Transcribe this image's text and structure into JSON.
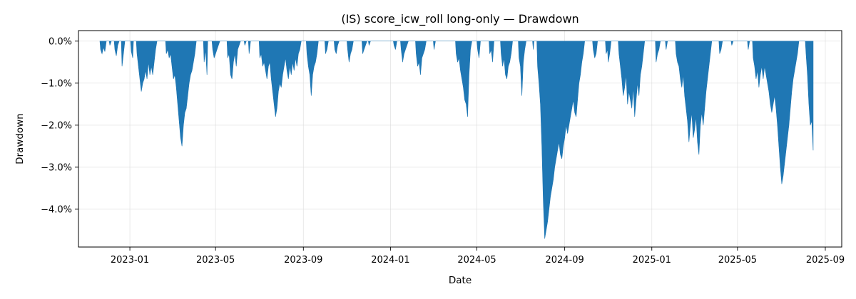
{
  "chart_data": {
    "type": "area",
    "title": "(IS) score_icw_roll long-only — Drawdown",
    "xlabel": "Date",
    "ylabel": "Drawdown",
    "series_color": "#1f77b4",
    "grid": true,
    "x_range": [
      "2022-10-21",
      "2025-09-24"
    ],
    "ylim": [
      -4.9,
      0.25
    ],
    "x_ticks": [
      "2023-01-01",
      "2023-05-01",
      "2023-09-01",
      "2024-01-01",
      "2024-05-01",
      "2024-09-01",
      "2025-01-01",
      "2025-05-01",
      "2025-09-01"
    ],
    "x_tick_labels": [
      "2023-01",
      "2023-05",
      "2023-09",
      "2024-01",
      "2024-05",
      "2024-09",
      "2025-01",
      "2025-05",
      "2025-09"
    ],
    "y_ticks": [
      0,
      -1,
      -2,
      -3,
      -4
    ],
    "y_tick_labels": [
      "0.0%",
      "−1.0%",
      "−2.0%",
      "−3.0%",
      "−4.0%"
    ],
    "y_unit": "percent",
    "points": [
      [
        "2022-11-20",
        0
      ],
      [
        "2022-11-21",
        -0.2
      ],
      [
        "2022-11-23",
        -0.3
      ],
      [
        "2022-11-25",
        -0.15
      ],
      [
        "2022-11-27",
        -0.25
      ],
      [
        "2022-11-29",
        0
      ],
      [
        "2022-12-03",
        0
      ],
      [
        "2022-12-04",
        -0.1
      ],
      [
        "2022-12-06",
        0
      ],
      [
        "2022-12-10",
        0
      ],
      [
        "2022-12-11",
        -0.2
      ],
      [
        "2022-12-13",
        -0.35
      ],
      [
        "2022-12-15",
        -0.1
      ],
      [
        "2022-12-17",
        0
      ],
      [
        "2022-12-20",
        0
      ],
      [
        "2022-12-21",
        -0.6
      ],
      [
        "2022-12-23",
        -0.3
      ],
      [
        "2022-12-25",
        0
      ],
      [
        "2023-01-02",
        0
      ],
      [
        "2023-01-03",
        -0.25
      ],
      [
        "2023-01-05",
        -0.4
      ],
      [
        "2023-01-06",
        0
      ],
      [
        "2023-01-10",
        0
      ],
      [
        "2023-01-11",
        -0.3
      ],
      [
        "2023-01-13",
        -0.6
      ],
      [
        "2023-01-15",
        -0.9
      ],
      [
        "2023-01-17",
        -1.2
      ],
      [
        "2023-01-19",
        -1.0
      ],
      [
        "2023-01-21",
        -0.9
      ],
      [
        "2023-01-23",
        -0.7
      ],
      [
        "2023-01-25",
        -0.9
      ],
      [
        "2023-01-27",
        -0.5
      ],
      [
        "2023-01-29",
        -0.8
      ],
      [
        "2023-01-31",
        -0.6
      ],
      [
        "2023-02-02",
        -0.8
      ],
      [
        "2023-02-04",
        -0.5
      ],
      [
        "2023-02-06",
        -0.2
      ],
      [
        "2023-02-08",
        0
      ],
      [
        "2023-02-20",
        0
      ],
      [
        "2023-02-21",
        -0.3
      ],
      [
        "2023-02-23",
        -0.2
      ],
      [
        "2023-02-25",
        -0.4
      ],
      [
        "2023-02-27",
        -0.3
      ],
      [
        "2023-03-01",
        -0.6
      ],
      [
        "2023-03-03",
        -0.9
      ],
      [
        "2023-03-05",
        -0.8
      ],
      [
        "2023-03-07",
        -1.1
      ],
      [
        "2023-03-09",
        -1.5
      ],
      [
        "2023-03-11",
        -1.9
      ],
      [
        "2023-03-13",
        -2.3
      ],
      [
        "2023-03-15",
        -2.5
      ],
      [
        "2023-03-17",
        -2.0
      ],
      [
        "2023-03-19",
        -1.7
      ],
      [
        "2023-03-21",
        -1.6
      ],
      [
        "2023-03-23",
        -1.3
      ],
      [
        "2023-03-25",
        -1.0
      ],
      [
        "2023-03-27",
        -0.8
      ],
      [
        "2023-03-29",
        -0.7
      ],
      [
        "2023-03-31",
        -0.5
      ],
      [
        "2023-04-02",
        -0.3
      ],
      [
        "2023-04-04",
        0
      ],
      [
        "2023-04-14",
        0
      ],
      [
        "2023-04-15",
        -0.5
      ],
      [
        "2023-04-17",
        -0.2
      ],
      [
        "2023-04-19",
        -0.8
      ],
      [
        "2023-04-20",
        0
      ],
      [
        "2023-04-26",
        0
      ],
      [
        "2023-04-27",
        -0.2
      ],
      [
        "2023-04-29",
        -0.4
      ],
      [
        "2023-05-01",
        -0.3
      ],
      [
        "2023-05-03",
        -0.2
      ],
      [
        "2023-05-05",
        -0.1
      ],
      [
        "2023-05-07",
        0
      ],
      [
        "2023-05-17",
        0
      ],
      [
        "2023-05-18",
        -0.4
      ],
      [
        "2023-05-20",
        -0.3
      ],
      [
        "2023-05-22",
        -0.8
      ],
      [
        "2023-05-24",
        -0.9
      ],
      [
        "2023-05-26",
        -0.5
      ],
      [
        "2023-05-28",
        -0.3
      ],
      [
        "2023-05-30",
        -0.6
      ],
      [
        "2023-06-01",
        -0.2
      ],
      [
        "2023-06-03",
        -0.1
      ],
      [
        "2023-06-05",
        0
      ],
      [
        "2023-06-10",
        0
      ],
      [
        "2023-06-11",
        -0.1
      ],
      [
        "2023-06-13",
        0
      ],
      [
        "2023-06-16",
        0
      ],
      [
        "2023-06-17",
        -0.3
      ],
      [
        "2023-06-19",
        0
      ],
      [
        "2023-07-01",
        0
      ],
      [
        "2023-07-02",
        -0.4
      ],
      [
        "2023-07-04",
        -0.3
      ],
      [
        "2023-07-06",
        -0.6
      ],
      [
        "2023-07-08",
        -0.5
      ],
      [
        "2023-07-10",
        -0.7
      ],
      [
        "2023-07-12",
        -0.9
      ],
      [
        "2023-07-14",
        -0.6
      ],
      [
        "2023-07-16",
        -0.5
      ],
      [
        "2023-07-18",
        -0.9
      ],
      [
        "2023-07-20",
        -1.2
      ],
      [
        "2023-07-22",
        -1.5
      ],
      [
        "2023-07-24",
        -1.8
      ],
      [
        "2023-07-26",
        -1.6
      ],
      [
        "2023-07-28",
        -1.2
      ],
      [
        "2023-07-30",
        -1.0
      ],
      [
        "2023-08-01",
        -1.1
      ],
      [
        "2023-08-03",
        -0.8
      ],
      [
        "2023-08-05",
        -0.6
      ],
      [
        "2023-08-07",
        -0.4
      ],
      [
        "2023-08-09",
        -0.7
      ],
      [
        "2023-08-11",
        -0.9
      ],
      [
        "2023-08-13",
        -0.6
      ],
      [
        "2023-08-15",
        -0.8
      ],
      [
        "2023-08-17",
        -0.5
      ],
      [
        "2023-08-19",
        -0.7
      ],
      [
        "2023-08-21",
        -0.4
      ],
      [
        "2023-08-23",
        -0.6
      ],
      [
        "2023-08-25",
        -0.3
      ],
      [
        "2023-08-27",
        -0.2
      ],
      [
        "2023-08-29",
        0
      ],
      [
        "2023-09-05",
        0
      ],
      [
        "2023-09-06",
        -0.3
      ],
      [
        "2023-09-08",
        -0.6
      ],
      [
        "2023-09-10",
        -0.8
      ],
      [
        "2023-09-12",
        -1.3
      ],
      [
        "2023-09-14",
        -0.8
      ],
      [
        "2023-09-16",
        -0.6
      ],
      [
        "2023-09-18",
        -0.5
      ],
      [
        "2023-09-20",
        -0.3
      ],
      [
        "2023-09-22",
        0
      ],
      [
        "2023-10-01",
        0
      ],
      [
        "2023-10-02",
        -0.3
      ],
      [
        "2023-10-04",
        -0.2
      ],
      [
        "2023-10-06",
        0
      ],
      [
        "2023-10-14",
        0
      ],
      [
        "2023-10-15",
        -0.2
      ],
      [
        "2023-10-17",
        -0.3
      ],
      [
        "2023-10-19",
        -0.1
      ],
      [
        "2023-10-21",
        0
      ],
      [
        "2023-11-01",
        0
      ],
      [
        "2023-11-02",
        -0.2
      ],
      [
        "2023-11-04",
        -0.5
      ],
      [
        "2023-11-06",
        -0.3
      ],
      [
        "2023-11-08",
        -0.2
      ],
      [
        "2023-11-10",
        0
      ],
      [
        "2023-11-22",
        0
      ],
      [
        "2023-11-23",
        -0.3
      ],
      [
        "2023-11-25",
        -0.2
      ],
      [
        "2023-11-27",
        -0.1
      ],
      [
        "2023-11-29",
        0
      ],
      [
        "2023-12-01",
        0
      ],
      [
        "2023-12-02",
        -0.1
      ],
      [
        "2023-12-04",
        0
      ],
      [
        "2024-01-05",
        0
      ],
      [
        "2024-01-06",
        -0.1
      ],
      [
        "2024-01-08",
        -0.2
      ],
      [
        "2024-01-10",
        0
      ],
      [
        "2024-01-15",
        0
      ],
      [
        "2024-01-16",
        -0.2
      ],
      [
        "2024-01-18",
        -0.5
      ],
      [
        "2024-01-20",
        -0.3
      ],
      [
        "2024-01-22",
        -0.2
      ],
      [
        "2024-01-24",
        -0.1
      ],
      [
        "2024-01-26",
        0
      ],
      [
        "2024-02-05",
        0
      ],
      [
        "2024-02-06",
        -0.3
      ],
      [
        "2024-02-08",
        -0.6
      ],
      [
        "2024-02-10",
        -0.5
      ],
      [
        "2024-02-12",
        -0.8
      ],
      [
        "2024-02-14",
        -0.4
      ],
      [
        "2024-02-16",
        -0.3
      ],
      [
        "2024-02-18",
        -0.2
      ],
      [
        "2024-02-20",
        0
      ],
      [
        "2024-03-01",
        0
      ],
      [
        "2024-03-02",
        -0.2
      ],
      [
        "2024-03-04",
        0
      ],
      [
        "2024-04-01",
        0
      ],
      [
        "2024-04-02",
        -0.3
      ],
      [
        "2024-04-04",
        -0.5
      ],
      [
        "2024-04-06",
        -0.4
      ],
      [
        "2024-04-08",
        -0.7
      ],
      [
        "2024-04-10",
        -0.9
      ],
      [
        "2024-04-12",
        -1.1
      ],
      [
        "2024-04-14",
        -1.4
      ],
      [
        "2024-04-16",
        -1.5
      ],
      [
        "2024-04-18",
        -1.8
      ],
      [
        "2024-04-20",
        -0.8
      ],
      [
        "2024-04-22",
        -0.2
      ],
      [
        "2024-04-24",
        0
      ],
      [
        "2024-05-01",
        0
      ],
      [
        "2024-05-02",
        -0.2
      ],
      [
        "2024-05-04",
        -0.4
      ],
      [
        "2024-05-06",
        0
      ],
      [
        "2024-05-18",
        0
      ],
      [
        "2024-05-19",
        -0.3
      ],
      [
        "2024-05-21",
        -0.2
      ],
      [
        "2024-05-23",
        -0.5
      ],
      [
        "2024-05-25",
        0
      ],
      [
        "2024-06-03",
        0
      ],
      [
        "2024-06-04",
        -0.3
      ],
      [
        "2024-06-06",
        -0.6
      ],
      [
        "2024-06-08",
        -0.4
      ],
      [
        "2024-06-10",
        -0.8
      ],
      [
        "2024-06-12",
        -0.9
      ],
      [
        "2024-06-14",
        -0.6
      ],
      [
        "2024-06-16",
        -0.5
      ],
      [
        "2024-06-18",
        -0.3
      ],
      [
        "2024-06-20",
        0
      ],
      [
        "2024-06-28",
        0
      ],
      [
        "2024-06-29",
        -0.4
      ],
      [
        "2024-07-01",
        -0.6
      ],
      [
        "2024-07-03",
        -1.3
      ],
      [
        "2024-07-05",
        -0.5
      ],
      [
        "2024-07-07",
        -0.2
      ],
      [
        "2024-07-09",
        0
      ],
      [
        "2024-07-18",
        0
      ],
      [
        "2024-07-19",
        -0.2
      ],
      [
        "2024-07-20",
        0
      ],
      [
        "2024-07-24",
        0
      ],
      [
        "2024-07-25",
        -0.6
      ],
      [
        "2024-07-27",
        -1.0
      ],
      [
        "2024-07-29",
        -1.5
      ],
      [
        "2024-07-31",
        -2.5
      ],
      [
        "2024-08-02",
        -3.8
      ],
      [
        "2024-08-04",
        -4.7
      ],
      [
        "2024-08-06",
        -4.5
      ],
      [
        "2024-08-08",
        -4.3
      ],
      [
        "2024-08-10",
        -4.0
      ],
      [
        "2024-08-12",
        -3.7
      ],
      [
        "2024-08-14",
        -3.5
      ],
      [
        "2024-08-16",
        -3.3
      ],
      [
        "2024-08-18",
        -3.0
      ],
      [
        "2024-08-20",
        -2.8
      ],
      [
        "2024-08-22",
        -2.6
      ],
      [
        "2024-08-24",
        -2.4
      ],
      [
        "2024-08-26",
        -2.7
      ],
      [
        "2024-08-28",
        -2.8
      ],
      [
        "2024-08-30",
        -2.5
      ],
      [
        "2024-09-01",
        -2.3
      ],
      [
        "2024-09-03",
        -2.0
      ],
      [
        "2024-09-05",
        -2.2
      ],
      [
        "2024-09-07",
        -2.0
      ],
      [
        "2024-09-09",
        -1.8
      ],
      [
        "2024-09-11",
        -1.6
      ],
      [
        "2024-09-13",
        -1.4
      ],
      [
        "2024-09-15",
        -1.7
      ],
      [
        "2024-09-17",
        -1.8
      ],
      [
        "2024-09-19",
        -1.4
      ],
      [
        "2024-09-21",
        -1.0
      ],
      [
        "2024-09-23",
        -0.8
      ],
      [
        "2024-09-25",
        -0.5
      ],
      [
        "2024-09-27",
        -0.3
      ],
      [
        "2024-09-29",
        0
      ],
      [
        "2024-10-10",
        0
      ],
      [
        "2024-10-11",
        -0.2
      ],
      [
        "2024-10-13",
        -0.4
      ],
      [
        "2024-10-15",
        -0.3
      ],
      [
        "2024-10-17",
        0
      ],
      [
        "2024-10-28",
        0
      ],
      [
        "2024-10-29",
        -0.3
      ],
      [
        "2024-10-31",
        -0.2
      ],
      [
        "2024-11-01",
        -0.5
      ],
      [
        "2024-11-03",
        -0.3
      ],
      [
        "2024-11-05",
        0
      ],
      [
        "2024-11-15",
        0
      ],
      [
        "2024-11-16",
        -0.3
      ],
      [
        "2024-11-18",
        -0.6
      ],
      [
        "2024-11-20",
        -0.9
      ],
      [
        "2024-11-22",
        -1.3
      ],
      [
        "2024-11-24",
        -1.1
      ],
      [
        "2024-11-26",
        -0.8
      ],
      [
        "2024-11-28",
        -1.5
      ],
      [
        "2024-11-30",
        -1.2
      ],
      [
        "2024-12-02",
        -1.4
      ],
      [
        "2024-12-04",
        -1.6
      ],
      [
        "2024-12-06",
        -1.1
      ],
      [
        "2024-12-08",
        -1.8
      ],
      [
        "2024-12-10",
        -1.4
      ],
      [
        "2024-12-12",
        -1.0
      ],
      [
        "2024-12-14",
        -1.3
      ],
      [
        "2024-12-16",
        -0.8
      ],
      [
        "2024-12-18",
        -0.6
      ],
      [
        "2024-12-20",
        -0.3
      ],
      [
        "2024-12-22",
        0
      ],
      [
        "2025-01-06",
        0
      ],
      [
        "2025-01-07",
        -0.5
      ],
      [
        "2025-01-09",
        -0.3
      ],
      [
        "2025-01-11",
        -0.2
      ],
      [
        "2025-01-13",
        0
      ],
      [
        "2025-01-20",
        0
      ],
      [
        "2025-01-21",
        -0.2
      ],
      [
        "2025-01-23",
        0
      ],
      [
        "2025-02-03",
        0
      ],
      [
        "2025-02-04",
        -0.3
      ],
      [
        "2025-02-06",
        -0.5
      ],
      [
        "2025-02-08",
        -0.6
      ],
      [
        "2025-02-10",
        -0.9
      ],
      [
        "2025-02-12",
        -1.1
      ],
      [
        "2025-02-14",
        -0.8
      ],
      [
        "2025-02-16",
        -1.3
      ],
      [
        "2025-02-18",
        -1.6
      ],
      [
        "2025-02-20",
        -1.9
      ],
      [
        "2025-02-22",
        -2.4
      ],
      [
        "2025-02-24",
        -2.0
      ],
      [
        "2025-02-26",
        -1.7
      ],
      [
        "2025-02-28",
        -2.3
      ],
      [
        "2025-03-02",
        -2.1
      ],
      [
        "2025-03-04",
        -1.8
      ],
      [
        "2025-03-06",
        -2.4
      ],
      [
        "2025-03-08",
        -2.7
      ],
      [
        "2025-03-10",
        -2.0
      ],
      [
        "2025-03-12",
        -1.7
      ],
      [
        "2025-03-14",
        -2.0
      ],
      [
        "2025-03-16",
        -1.6
      ],
      [
        "2025-03-18",
        -1.2
      ],
      [
        "2025-03-20",
        -0.9
      ],
      [
        "2025-03-22",
        -0.6
      ],
      [
        "2025-03-24",
        -0.3
      ],
      [
        "2025-03-26",
        0
      ],
      [
        "2025-04-05",
        0
      ],
      [
        "2025-04-06",
        -0.3
      ],
      [
        "2025-04-08",
        -0.2
      ],
      [
        "2025-04-10",
        0
      ],
      [
        "2025-04-22",
        0
      ],
      [
        "2025-04-23",
        -0.1
      ],
      [
        "2025-04-25",
        0
      ],
      [
        "2025-05-15",
        0
      ],
      [
        "2025-05-16",
        -0.2
      ],
      [
        "2025-05-18",
        0
      ],
      [
        "2025-05-22",
        0
      ],
      [
        "2025-05-23",
        -0.4
      ],
      [
        "2025-05-25",
        -0.6
      ],
      [
        "2025-05-27",
        -0.9
      ],
      [
        "2025-05-29",
        -0.7
      ],
      [
        "2025-05-31",
        -1.1
      ],
      [
        "2025-06-02",
        -0.8
      ],
      [
        "2025-06-04",
        -0.6
      ],
      [
        "2025-06-06",
        -0.9
      ],
      [
        "2025-06-08",
        -0.6
      ],
      [
        "2025-06-10",
        -0.8
      ],
      [
        "2025-06-12",
        -1.0
      ],
      [
        "2025-06-14",
        -1.2
      ],
      [
        "2025-06-16",
        -1.5
      ],
      [
        "2025-06-18",
        -1.7
      ],
      [
        "2025-06-20",
        -1.5
      ],
      [
        "2025-06-22",
        -1.3
      ],
      [
        "2025-06-24",
        -1.6
      ],
      [
        "2025-06-26",
        -2.0
      ],
      [
        "2025-06-28",
        -2.5
      ],
      [
        "2025-06-30",
        -3.0
      ],
      [
        "2025-07-02",
        -3.4
      ],
      [
        "2025-07-04",
        -3.2
      ],
      [
        "2025-07-06",
        -2.9
      ],
      [
        "2025-07-08",
        -2.6
      ],
      [
        "2025-07-10",
        -2.3
      ],
      [
        "2025-07-12",
        -2.0
      ],
      [
        "2025-07-14",
        -1.6
      ],
      [
        "2025-07-16",
        -1.2
      ],
      [
        "2025-07-18",
        -0.9
      ],
      [
        "2025-07-20",
        -0.7
      ],
      [
        "2025-07-22",
        -0.5
      ],
      [
        "2025-07-24",
        -0.3
      ],
      [
        "2025-07-26",
        0
      ],
      [
        "2025-08-04",
        0
      ],
      [
        "2025-08-05",
        -0.3
      ],
      [
        "2025-08-07",
        -0.8
      ],
      [
        "2025-08-09",
        -1.5
      ],
      [
        "2025-08-11",
        -2.0
      ],
      [
        "2025-08-13",
        -1.9
      ],
      [
        "2025-08-15",
        -2.6
      ]
    ]
  }
}
